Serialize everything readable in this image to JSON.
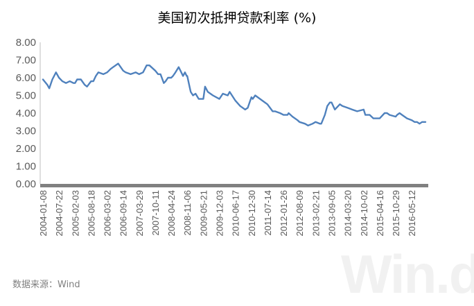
{
  "chart_data": {
    "type": "line",
    "title": "美国初次抵押贷款利率 (%)",
    "xlabel": "",
    "ylabel": "",
    "ylim": [
      0,
      8
    ],
    "yticks": [
      "0.00",
      "1.00",
      "2.00",
      "3.00",
      "4.00",
      "5.00",
      "6.00",
      "7.00",
      "8.00"
    ],
    "xticks": [
      "2004-01-08",
      "2004-07-22",
      "2005-02-03",
      "2005-08-18",
      "2006-03-02",
      "2006-09-14",
      "2007-03-29",
      "2007-10-11",
      "2008-04-24",
      "2008-11-06",
      "2009-05-21",
      "2009-12-03",
      "2010-06-17",
      "2010-12-30",
      "2011-07-14",
      "2012-01-26",
      "2012-08-09",
      "2013-02-21",
      "2013-09-05",
      "2014-03-20",
      "2014-10-02",
      "2015-04-16",
      "2015-10-29",
      "2016-05-12"
    ],
    "grid": false,
    "legend": "none",
    "series": [
      {
        "color": "#4f81bd",
        "x": [
          "2004-01-08",
          "2004-03-01",
          "2004-03-25",
          "2004-05-01",
          "2004-06-15",
          "2004-07-22",
          "2004-09-01",
          "2004-10-15",
          "2004-12-01",
          "2005-01-15",
          "2005-02-03",
          "2005-03-01",
          "2005-04-15",
          "2005-06-01",
          "2005-06-30",
          "2005-08-18",
          "2005-09-15",
          "2005-10-15",
          "2005-11-15",
          "2006-01-15",
          "2006-03-02",
          "2006-04-15",
          "2006-05-15",
          "2006-07-15",
          "2006-09-14",
          "2006-10-15",
          "2006-12-15",
          "2007-02-15",
          "2007-03-29",
          "2007-05-15",
          "2007-06-28",
          "2007-08-01",
          "2007-10-11",
          "2007-11-15",
          "2007-12-15",
          "2008-01-24",
          "2008-02-15",
          "2008-03-15",
          "2008-04-24",
          "2008-05-15",
          "2008-06-15",
          "2008-07-24",
          "2008-08-15",
          "2008-09-15",
          "2008-10-09",
          "2008-10-30",
          "2008-11-06",
          "2008-12-04",
          "2008-12-18",
          "2009-01-15",
          "2009-02-15",
          "2009-03-26",
          "2009-04-30",
          "2009-05-21",
          "2009-06-11",
          "2009-07-15",
          "2009-09-15",
          "2009-12-03",
          "2010-01-15",
          "2010-03-15",
          "2010-04-08",
          "2010-06-17",
          "2010-08-15",
          "2010-10-15",
          "2010-11-15",
          "2010-12-30",
          "2011-01-15",
          "2011-02-15",
          "2011-04-15",
          "2011-07-14",
          "2011-08-15",
          "2011-09-15",
          "2011-10-15",
          "2011-12-15",
          "2012-01-26",
          "2012-03-15",
          "2012-03-29",
          "2012-05-15",
          "2012-07-15",
          "2012-08-09",
          "2012-10-15",
          "2012-11-22",
          "2013-01-15",
          "2013-02-21",
          "2013-04-15",
          "2013-05-02",
          "2013-06-15",
          "2013-07-15",
          "2013-08-15",
          "2013-09-05",
          "2013-10-15",
          "2013-12-15",
          "2014-01-15",
          "2014-03-20",
          "2014-05-15",
          "2014-07-15",
          "2014-10-02",
          "2014-10-23",
          "2014-12-15",
          "2015-01-29",
          "2015-03-15",
          "2015-04-16",
          "2015-06-15",
          "2015-07-15",
          "2015-08-15",
          "2015-10-29",
          "2015-11-15",
          "2015-12-15",
          "2016-01-15",
          "2016-03-15",
          "2016-05-12",
          "2016-06-15",
          "2016-07-15",
          "2016-08-15",
          "2016-09-15",
          "2016-10-27"
        ],
        "values": [
          5.9,
          5.6,
          5.4,
          5.9,
          6.3,
          6.0,
          5.8,
          5.7,
          5.8,
          5.7,
          5.7,
          5.9,
          5.9,
          5.6,
          5.5,
          5.8,
          5.8,
          6.1,
          6.3,
          6.2,
          6.3,
          6.5,
          6.6,
          6.8,
          6.4,
          6.3,
          6.2,
          6.3,
          6.2,
          6.3,
          6.7,
          6.7,
          6.4,
          6.2,
          6.2,
          5.7,
          5.8,
          6.0,
          6.0,
          6.1,
          6.3,
          6.6,
          6.4,
          6.1,
          6.3,
          6.1,
          6.1,
          5.5,
          5.2,
          5.0,
          5.1,
          4.8,
          4.8,
          4.8,
          5.5,
          5.2,
          5.0,
          4.8,
          5.1,
          5.0,
          5.2,
          4.7,
          4.4,
          4.2,
          4.3,
          4.9,
          4.8,
          5.0,
          4.8,
          4.5,
          4.3,
          4.1,
          4.1,
          4.0,
          3.9,
          3.9,
          4.0,
          3.8,
          3.6,
          3.5,
          3.4,
          3.3,
          3.4,
          3.5,
          3.4,
          3.4,
          3.9,
          4.4,
          4.6,
          4.6,
          4.2,
          4.5,
          4.4,
          4.3,
          4.2,
          4.1,
          4.2,
          3.9,
          3.9,
          3.7,
          3.7,
          3.7,
          4.0,
          4.0,
          3.9,
          3.8,
          3.9,
          4.0,
          3.9,
          3.7,
          3.6,
          3.5,
          3.5,
          3.4,
          3.5,
          3.5
        ]
      }
    ]
  },
  "source": "数据来源：Wind",
  "watermark": "Win.d"
}
